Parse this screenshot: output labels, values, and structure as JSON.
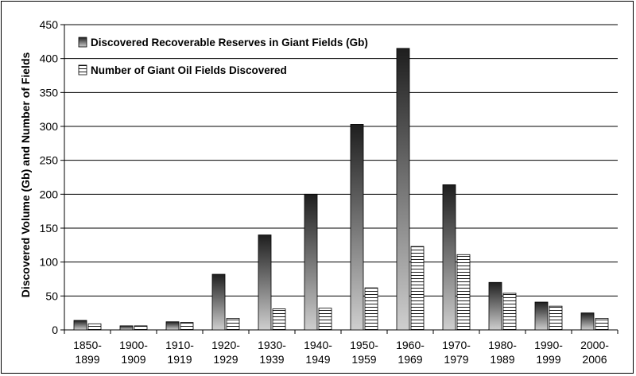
{
  "chart_data": {
    "type": "bar",
    "title": "",
    "xlabel": "",
    "ylabel": "Discovered Volume (Gb) and Number of Fields",
    "ylim": [
      0,
      450
    ],
    "yticks": [
      0,
      50,
      100,
      150,
      200,
      250,
      300,
      350,
      400,
      450
    ],
    "grid": true,
    "legend_position": "top-left",
    "categories": [
      [
        "1850-",
        "1899"
      ],
      [
        "1900-",
        "1909"
      ],
      [
        "1910-",
        "1919"
      ],
      [
        "1920-",
        "1929"
      ],
      [
        "1930-",
        "1939"
      ],
      [
        "1940-",
        "1949"
      ],
      [
        "1950-",
        "1959"
      ],
      [
        "1960-",
        "1969"
      ],
      [
        "1970-",
        "1979"
      ],
      [
        "1980-",
        "1989"
      ],
      [
        "1990-",
        "1999"
      ],
      [
        "2000-",
        "2006"
      ]
    ],
    "series": [
      {
        "name": "Discovered Recoverable Reserves in Giant Fields (Gb)",
        "values": [
          14,
          6,
          12,
          82,
          140,
          200,
          303,
          415,
          214,
          70,
          41,
          25
        ]
      },
      {
        "name": "Number of Giant Oil Fields Discovered",
        "values": [
          9,
          6,
          11,
          17,
          31,
          32,
          62,
          123,
          111,
          54,
          35,
          17
        ]
      }
    ]
  }
}
